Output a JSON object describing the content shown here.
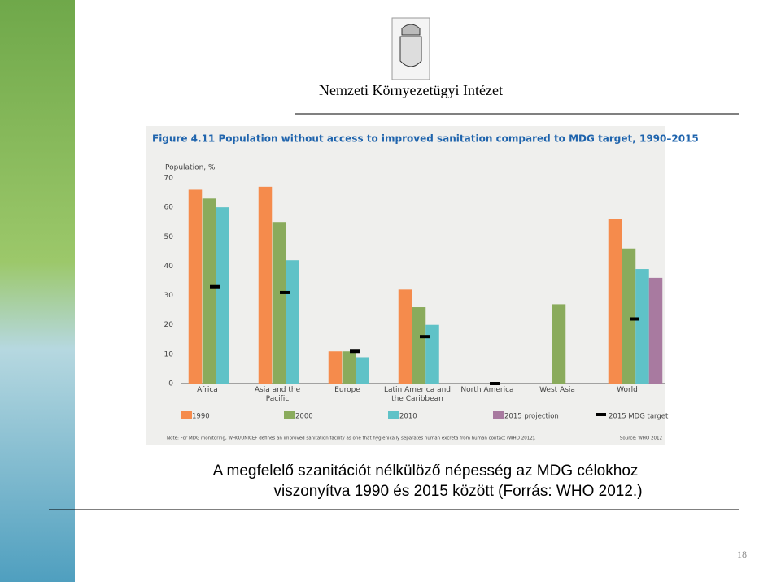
{
  "header": {
    "organization": "Nemzeti Környezetügyi Intézet"
  },
  "chart_data": {
    "type": "bar",
    "title": "Figure 4.11 Population without access to improved sanitation compared to MDG target, 1990–2015",
    "y_label": "Population, %",
    "categories": [
      "Africa",
      "Asia and the Pacific",
      "Europe",
      "Latin America and the Caribbean",
      "North America",
      "West Asia",
      "World"
    ],
    "series": [
      {
        "name": "1990",
        "color": "#f58b4c",
        "values": [
          66,
          67,
          11,
          32,
          null,
          null,
          56
        ]
      },
      {
        "name": "2000",
        "color": "#8aab5c",
        "values": [
          63,
          55,
          11,
          26,
          null,
          27,
          46
        ]
      },
      {
        "name": "2010",
        "color": "#5fc2c7",
        "values": [
          60,
          42,
          9,
          20,
          null,
          null,
          39
        ]
      },
      {
        "name": "2015 projection",
        "color": "#a87aa0",
        "values": [
          null,
          null,
          null,
          null,
          null,
          null,
          36
        ]
      }
    ],
    "target": {
      "name": "2015 MDG target",
      "color": "#000000",
      "values": [
        33,
        31,
        11,
        16,
        0,
        null,
        22
      ]
    },
    "ylim": [
      0,
      70
    ],
    "yticks": [
      0,
      10,
      20,
      30,
      40,
      50,
      60,
      70
    ],
    "grid": false,
    "note": "Note: For MDG monitoring, WHO/UNICEF defines an improved sanitation facility as one that hygienically separates human excreta from human contact (WHO 2012).",
    "source": "Source: WHO 2012"
  },
  "caption": {
    "line1": "A megfelelő szanitációt nélkülöző népesség az MDG célokhoz",
    "line2": "viszonyítva 1990 és 2015 között (Forrás: WHO 2012.)"
  },
  "page_number": "18"
}
